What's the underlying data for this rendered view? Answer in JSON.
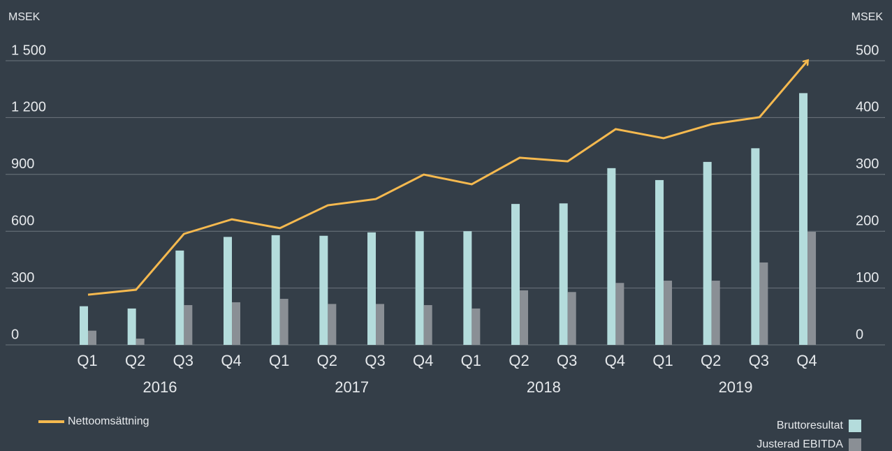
{
  "chart_data": {
    "type": "bar-line",
    "ylabel": "MSEK",
    "y2label": "MSEK",
    "categories": [
      "Q1",
      "Q2",
      "Q3",
      "Q4",
      "Q1",
      "Q2",
      "Q3",
      "Q4",
      "Q1",
      "Q2",
      "Q3",
      "Q4",
      "Q1",
      "Q2",
      "Q3",
      "Q4"
    ],
    "years": [
      "2016",
      "2017",
      "2018",
      "2019"
    ],
    "series": [
      {
        "name": "Nettoomsättning",
        "type": "line",
        "color": "#f5b94f",
        "axis": "y",
        "values": [
          265,
          291,
          586,
          663,
          616,
          737,
          770,
          899,
          848,
          988,
          969,
          1139,
          1091,
          1165,
          1202,
          1500
        ]
      },
      {
        "name": "Bruttoresultat",
        "type": "bar",
        "color": "#b4dcdc",
        "axis": "y2",
        "values": [
          68,
          64,
          166,
          190,
          193,
          192,
          198,
          200,
          200,
          248,
          249,
          311,
          290,
          322,
          346,
          443
        ]
      },
      {
        "name": "Justerad EBITDA",
        "type": "bar",
        "color": "#8a8f95",
        "axis": "y2",
        "values": [
          25,
          11,
          70,
          75,
          81,
          72,
          72,
          70,
          64,
          96,
          93,
          109,
          113,
          113,
          145,
          199
        ]
      }
    ],
    "ylim": [
      0,
      1500
    ],
    "yticks": [
      0,
      300,
      600,
      900,
      {
        "value": 1200,
        "label": "1 200"
      },
      {
        "value": 1500,
        "label": "1 500"
      }
    ],
    "y2lim": [
      0,
      500
    ],
    "y2ticks": [
      0,
      100,
      200,
      300,
      400,
      500
    ],
    "grid": true
  }
}
